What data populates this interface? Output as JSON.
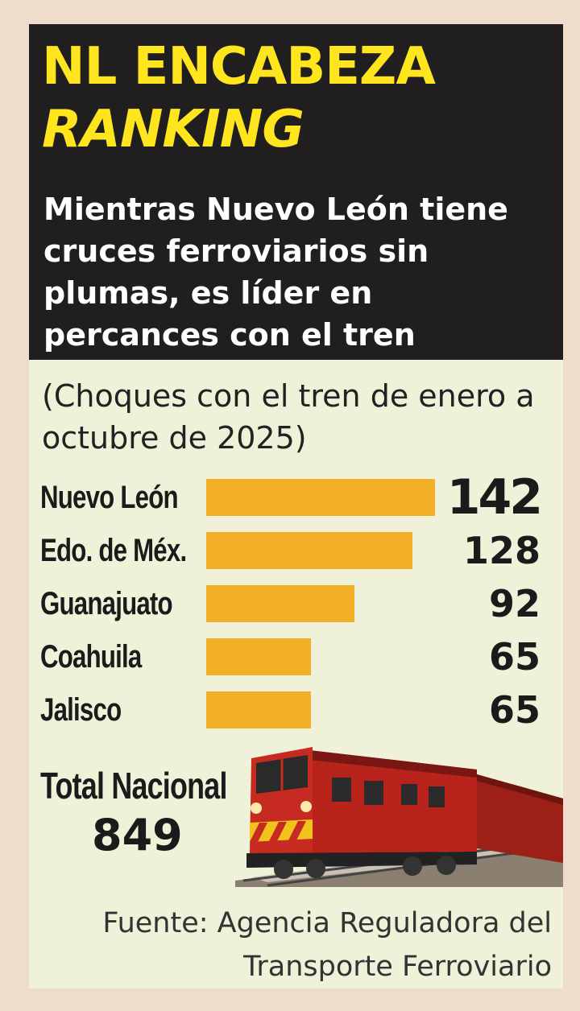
{
  "header": {
    "title_line1": "NL ENCABEZA",
    "title_line2": "RANKING",
    "subtitle": "Mientras Nuevo León tiene cruces ferroviarios sin plumas, es líder en percances con el tren"
  },
  "note": "(Choques con el tren de enero a octubre de 2025)",
  "chart_data": {
    "type": "bar",
    "orientation": "horizontal",
    "categories": [
      "Nuevo León",
      "Edo. de Méx.",
      "Guanajuato",
      "Coahuila",
      "Jalisco"
    ],
    "values": [
      142,
      128,
      92,
      65,
      65
    ],
    "value_labels": [
      "142",
      "128",
      "92",
      "65",
      "65"
    ],
    "bar_color": "#f4af29"
  },
  "total": {
    "label": "Total Nacional",
    "value": "849"
  },
  "source": "Fuente: Agencia Reguladora del Transporte Ferroviario",
  "colors": {
    "header_bg": "#201e1e",
    "title": "#ffe51e",
    "panel_bg": "#f0f1d9",
    "page_bg": "#efdccb",
    "train_red": "#b8231b"
  }
}
